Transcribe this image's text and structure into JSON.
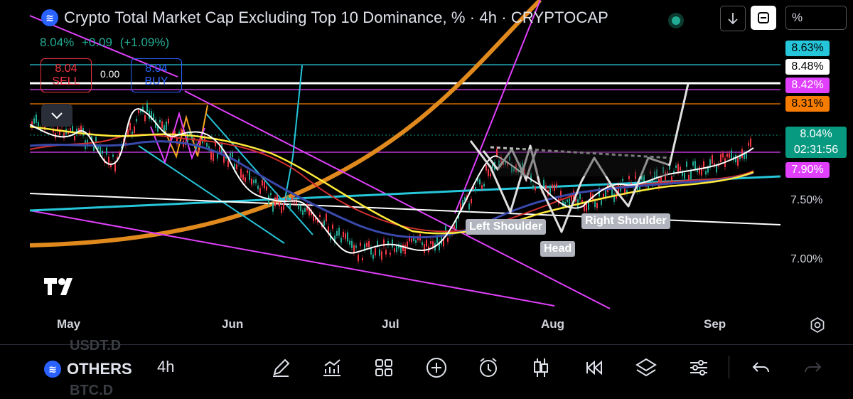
{
  "header": {
    "symbol_icon_text": "≋",
    "title": "Crypto Total Market Cap Excluding Top 10 Dominance, % · 4h · CRYPTOCAP",
    "last": "8.04%",
    "change": "+0.09",
    "change_pct": "(+1.09%)",
    "pct_button": "%"
  },
  "orders": {
    "sell_price": "8.04",
    "sell_label": "SELL",
    "spread": "0.00",
    "buy_price": "8.04",
    "buy_label": "BUY"
  },
  "price_labels": [
    {
      "text": "8.63%",
      "bg": "#26c6da",
      "color": "#000000"
    },
    {
      "text": "8.48%",
      "bg": "#ffffff",
      "color": "#000000"
    },
    {
      "text": "8.42%",
      "bg": "#e040fb",
      "color": "#ffffff"
    },
    {
      "text": "8.31%",
      "bg": "#f57c00",
      "color": "#000000"
    },
    {
      "text": "8.04%",
      "bg": "#089981",
      "color": "#ffffff"
    },
    {
      "text": "02:31:56",
      "bg": "#089981",
      "color": "#ffffff"
    },
    {
      "text": "7.90%",
      "bg": "#e040fb",
      "color": "#ffffff"
    }
  ],
  "y_axis": [
    "7.50%",
    "7.00%"
  ],
  "x_axis": [
    "May",
    "Jun",
    "Jul",
    "Aug",
    "Sep"
  ],
  "annotations": {
    "left_shoulder": "Left Shoulder",
    "head": "Head",
    "right_shoulder": "Right Shoulder"
  },
  "bottom_bar": {
    "ghost_top": "USDT.D",
    "ghost_bottom": "BTC.D",
    "symbol": "OTHERS",
    "timeframe": "4h",
    "icons": [
      "pencil-icon",
      "indicators-icon",
      "grid-icon",
      "add-icon",
      "alert-clock-icon",
      "candles-icon",
      "replay-icon",
      "layers-icon",
      "settings-sliders-icon",
      "undo-icon",
      "redo-icon"
    ]
  },
  "colors": {
    "up": "#22ab94",
    "down": "#f23645",
    "accent": "#2962ff"
  }
}
